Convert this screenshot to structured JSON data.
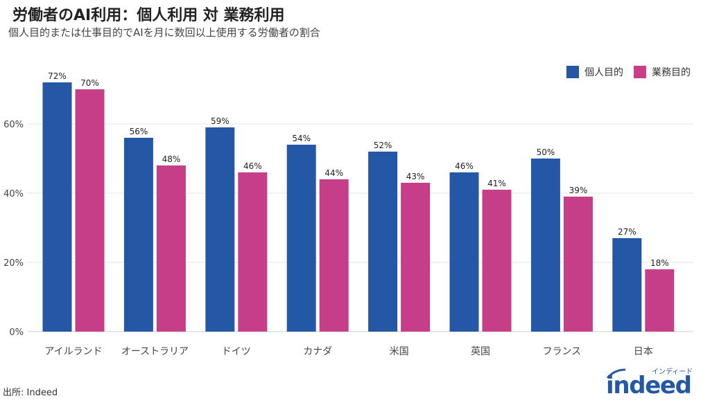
{
  "title": "労働者のAI利用：個人利用 対 業務利用",
  "subtitle": "個人目的または仕事目的でAIを月に数回以上使用する労働者の割合",
  "source": "出所: Indeed",
  "logo": {
    "text": "indeed",
    "kana": "インディード"
  },
  "chart_data": {
    "type": "bar",
    "categories": [
      "アイルランド",
      "オーストラリア",
      "ドイツ",
      "カナダ",
      "米国",
      "英国",
      "フランス",
      "日本"
    ],
    "series": [
      {
        "name": "個人目的",
        "color": "#2557A7",
        "values": [
          72,
          56,
          59,
          54,
          52,
          46,
          50,
          27
        ]
      },
      {
        "name": "業務目的",
        "color": "#C53E87",
        "values": [
          70,
          48,
          46,
          44,
          43,
          41,
          39,
          18
        ]
      }
    ],
    "yticks": [
      "0%",
      "20%",
      "40%",
      "60%"
    ],
    "ylim": [
      0,
      75
    ],
    "grid": true,
    "legend": "top-right",
    "value_format": "%"
  }
}
